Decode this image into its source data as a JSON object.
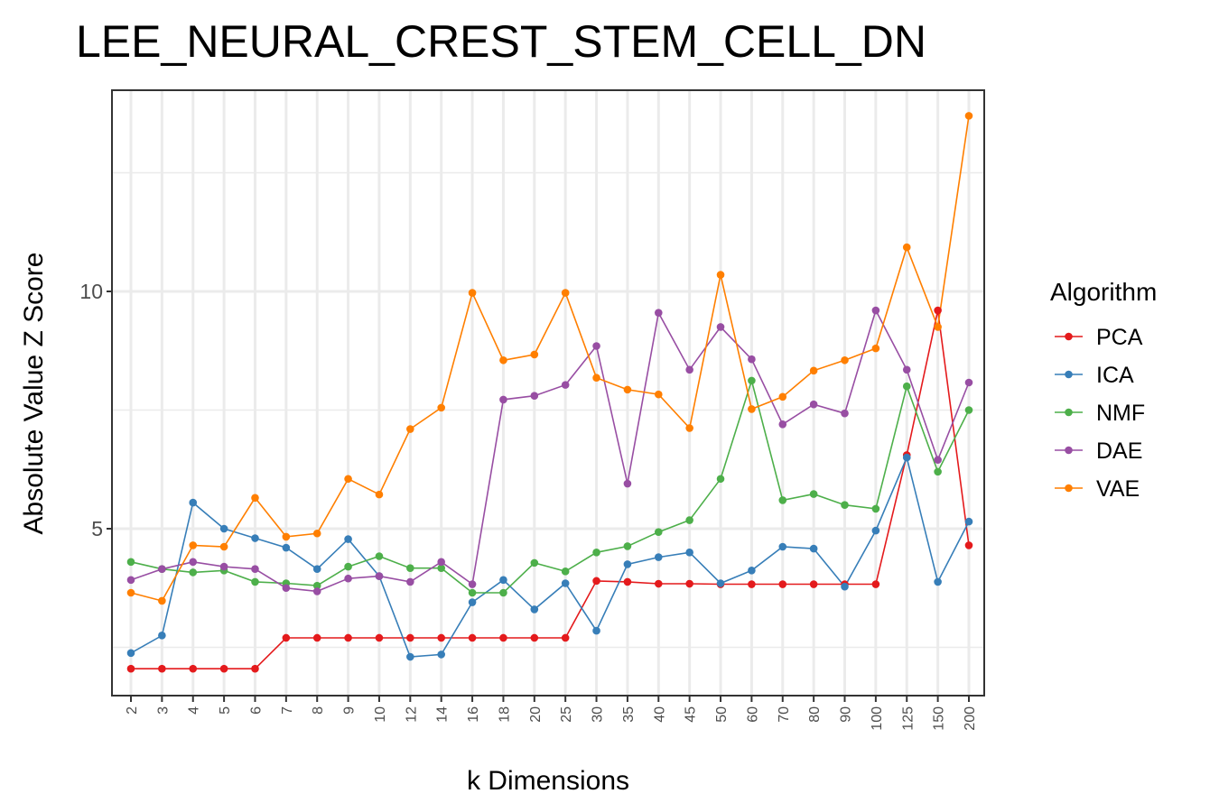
{
  "chart_data": {
    "type": "line",
    "title": "LEE_NEURAL_CREST_STEM_CELL_DN",
    "xlabel": "k Dimensions",
    "ylabel": "Absolute Value Z Score",
    "categories": [
      "2",
      "3",
      "4",
      "5",
      "6",
      "7",
      "8",
      "9",
      "10",
      "12",
      "14",
      "16",
      "18",
      "20",
      "25",
      "30",
      "35",
      "40",
      "45",
      "50",
      "60",
      "70",
      "80",
      "90",
      "100",
      "125",
      "150",
      "200"
    ],
    "ylim": [
      1.5,
      14.5
    ],
    "yticks": [
      5,
      10
    ],
    "grid": true,
    "legend_title": "Algorithm",
    "legend_position": "right",
    "series": [
      {
        "name": "PCA",
        "color": "#E41A1C",
        "values": [
          2.05,
          2.05,
          2.05,
          2.05,
          2.05,
          2.7,
          2.7,
          2.7,
          2.7,
          2.7,
          2.7,
          2.7,
          2.7,
          2.7,
          2.7,
          3.9,
          3.88,
          3.84,
          3.84,
          3.83,
          3.83,
          3.83,
          3.83,
          3.83,
          3.83,
          6.55,
          9.6,
          4.65
        ]
      },
      {
        "name": "ICA",
        "color": "#377EB8",
        "values": [
          2.38,
          2.75,
          5.55,
          5.0,
          4.8,
          4.6,
          4.15,
          4.78,
          4.0,
          2.3,
          2.35,
          3.45,
          3.92,
          3.3,
          3.85,
          2.85,
          4.25,
          4.4,
          4.5,
          3.85,
          4.12,
          4.62,
          4.58,
          3.78,
          4.96,
          6.5,
          3.88,
          5.15
        ]
      },
      {
        "name": "NMF",
        "color": "#4DAF4A",
        "values": [
          4.3,
          4.15,
          4.08,
          4.12,
          3.88,
          3.85,
          3.8,
          4.2,
          4.42,
          4.17,
          4.17,
          3.65,
          3.65,
          4.28,
          4.1,
          4.5,
          4.63,
          4.93,
          5.18,
          6.05,
          8.12,
          5.6,
          5.73,
          5.5,
          5.42,
          8.0,
          6.2,
          7.5
        ]
      },
      {
        "name": "DAE",
        "color": "#984EA3",
        "values": [
          3.92,
          4.15,
          4.3,
          4.2,
          4.15,
          3.75,
          3.68,
          3.95,
          4.0,
          3.88,
          4.3,
          3.83,
          7.72,
          7.8,
          8.03,
          8.85,
          5.95,
          9.55,
          8.35,
          9.25,
          8.57,
          7.2,
          7.62,
          7.43,
          9.6,
          8.35,
          6.45,
          8.08
        ]
      },
      {
        "name": "VAE",
        "color": "#FF7F00",
        "values": [
          3.65,
          3.48,
          4.65,
          4.62,
          5.65,
          4.83,
          4.9,
          6.05,
          5.72,
          7.1,
          7.55,
          9.97,
          8.55,
          8.67,
          9.97,
          8.18,
          7.93,
          7.83,
          7.12,
          10.35,
          7.52,
          7.78,
          8.33,
          8.55,
          8.8,
          10.93,
          9.25,
          13.7
        ]
      }
    ]
  }
}
